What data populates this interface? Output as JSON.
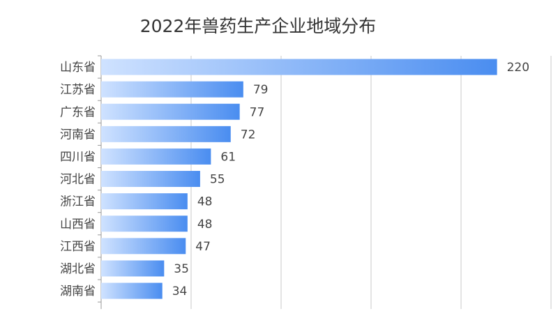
{
  "chart_data": {
    "type": "bar",
    "orientation": "horizontal",
    "title": "2022年兽药生产企业地域分布",
    "xlabel": "",
    "ylabel": "",
    "categories": [
      "山东省",
      "江苏省",
      "广东省",
      "河南省",
      "四川省",
      "河北省",
      "浙江省",
      "山西省",
      "江西省",
      "湖北省",
      "湖南省"
    ],
    "values": [
      220,
      79,
      77,
      72,
      61,
      55,
      48,
      48,
      47,
      35,
      34
    ],
    "xlim": [
      0,
      250
    ],
    "grid": true,
    "data_labels": true,
    "bar_gradient": [
      "#cfe2ff",
      "#4a8df0"
    ]
  }
}
